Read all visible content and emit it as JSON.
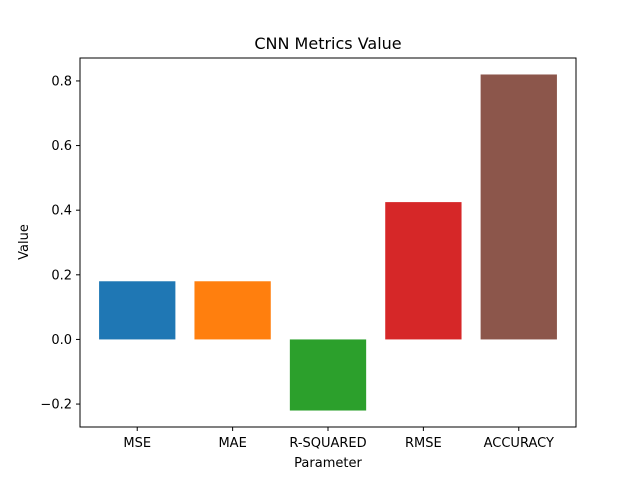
{
  "chart_data": {
    "type": "bar",
    "title": "CNN Metrics Value",
    "xlabel": "Parameter",
    "ylabel": "Value",
    "categories": [
      "MSE",
      "MAE",
      "R-SQUARED",
      "RMSE",
      "ACCURACY"
    ],
    "values": [
      0.18,
      0.18,
      -0.22,
      0.425,
      0.82
    ],
    "colors": [
      "#1f77b4",
      "#ff7f0e",
      "#2ca02c",
      "#d62728",
      "#8c564b"
    ],
    "ylim": [
      -0.271,
      0.871
    ],
    "yticks": [
      -0.2,
      0.0,
      0.2,
      0.4,
      0.6,
      0.8
    ],
    "ytick_labels": [
      "−0.2",
      "0.0",
      "0.2",
      "0.4",
      "0.6",
      "0.8"
    ],
    "grid": false,
    "legend": "none"
  }
}
